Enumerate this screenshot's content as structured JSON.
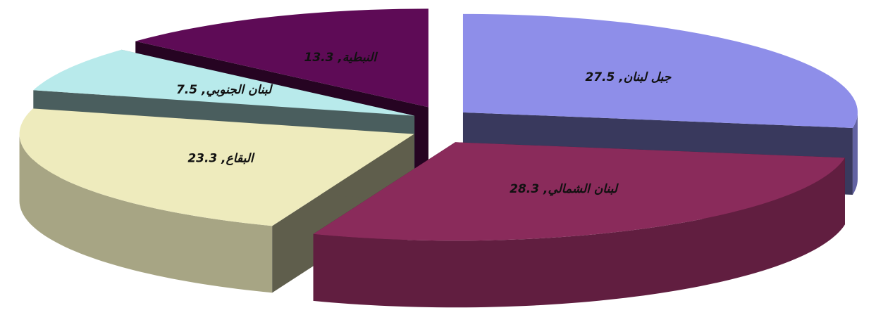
{
  "chart_data": {
    "type": "pie3d",
    "value_labels": [
      "جبل لبنان, 27.5",
      "لبنان الشمالي, 28.3",
      "البقاع, 23.3",
      "لبنان الجنوبي, 7.5",
      "النبطية, 13.3"
    ],
    "values": [
      27.5,
      28.3,
      23.3,
      7.5,
      13.3
    ],
    "colors": [
      "#8e8ee9",
      "#8a2b5b",
      "#eeebbd",
      "#b8eaeb",
      "#5e0b56"
    ]
  }
}
